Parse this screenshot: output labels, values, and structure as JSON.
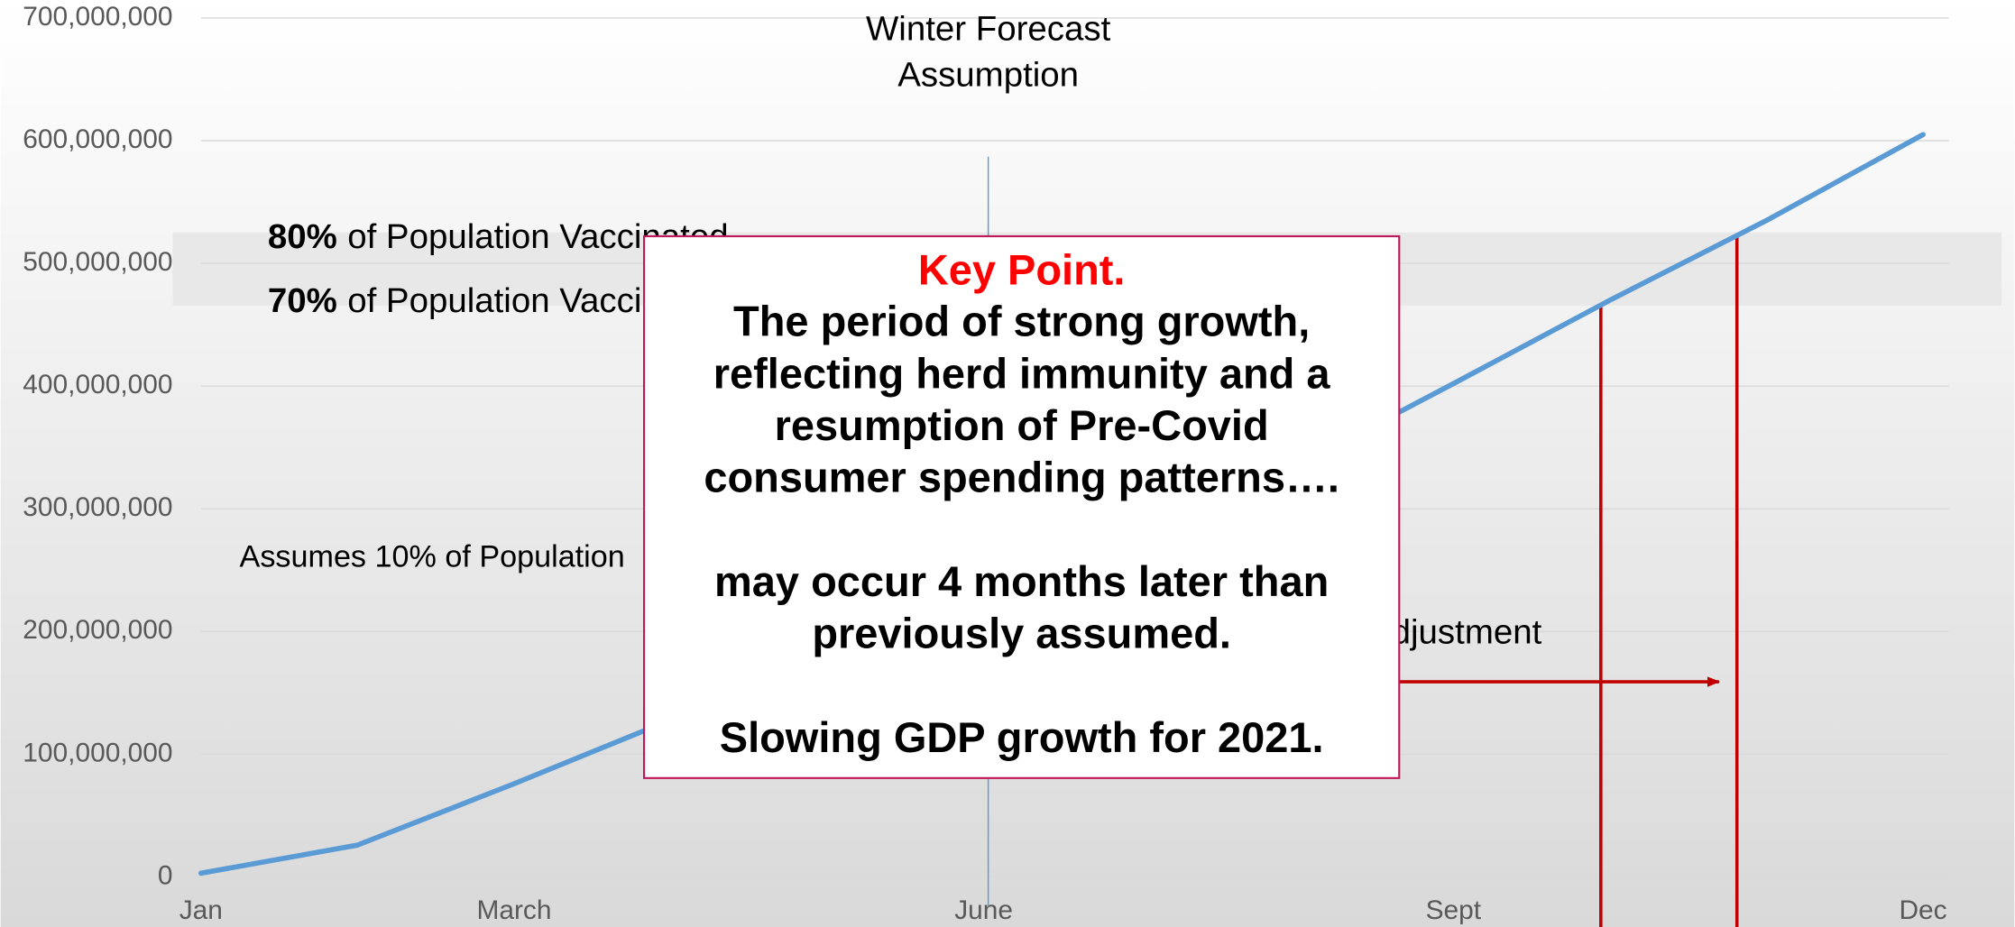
{
  "chart_data": {
    "type": "line",
    "categories": [
      "Jan",
      null,
      "March",
      null,
      null,
      "June",
      null,
      null,
      "Sept",
      null,
      null,
      "Dec"
    ],
    "values": [
      3000000,
      26000000,
      76000000,
      128000000,
      175000000,
      230000000,
      285000000,
      335000000,
      402000000,
      470000000,
      535000000,
      605000000
    ],
    "color": "#5b9bd5",
    "ylim": [
      0,
      700000000
    ],
    "yticks": [
      0,
      {
        "value": 100000000,
        "label": "100,000,000"
      },
      {
        "value": 200000000,
        "label": "200,000,000"
      },
      {
        "value": 300000000,
        "label": "300,000,000"
      },
      {
        "value": 400000000,
        "label": "400,000,000"
      },
      {
        "value": 500000000,
        "label": "500,000,000"
      },
      {
        "value": 600000000,
        "label": "600,000,000"
      },
      {
        "value": 700000000,
        "label": "700,000,000"
      }
    ],
    "grid": true,
    "annotations": {
      "winter_forecast": [
        "Winter Forecast",
        "Assumption"
      ],
      "vaccinated_80": {
        "percent": "80%",
        "text": "of Population Vaccinated"
      },
      "vaccinated_70": {
        "percent": "70%",
        "text": "of Population Vaccinated"
      },
      "assumes": "Assumes 10% of Population",
      "adjustment": "Adjustment"
    }
  },
  "key_point": {
    "heading": "Key Point.",
    "paragraphs": [
      [
        "The period of strong growth,",
        "reflecting herd immunity and a",
        "resumption of Pre-Covid",
        "consumer spending patterns…."
      ],
      [
        "may occur 4 months later than",
        "previously assumed."
      ],
      [
        "Slowing GDP growth for 2021."
      ]
    ]
  }
}
